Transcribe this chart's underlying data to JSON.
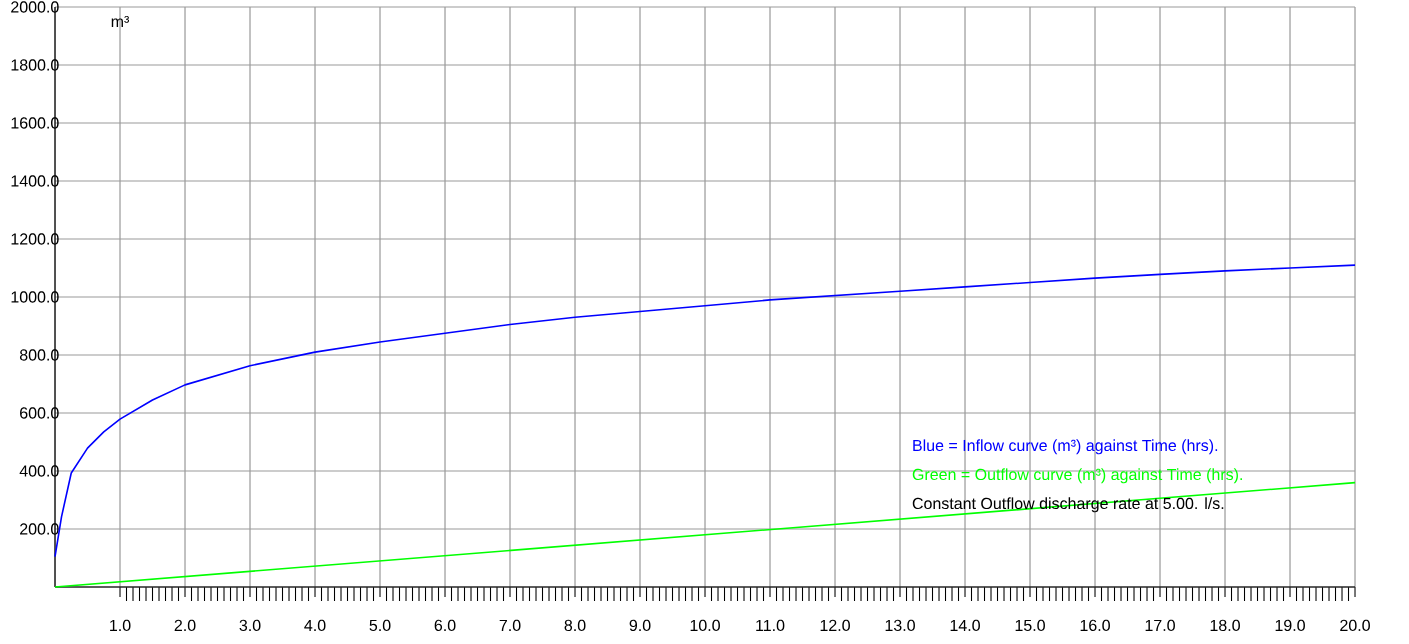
{
  "chart_data": {
    "type": "line",
    "ylabel": "m³",
    "x": [
      0,
      0.1,
      0.25,
      0.5,
      0.75,
      1,
      1.5,
      2,
      3,
      4,
      5,
      6,
      7,
      8,
      9,
      10,
      11,
      12,
      13,
      14,
      15,
      16,
      17,
      18,
      19,
      20
    ],
    "series": [
      {
        "name": "Blue = Inflow curve (m³) against Time (hrs).",
        "color": "#0000ff",
        "values": [
          105,
          242,
          393,
          479,
          535,
          579,
          645,
          697,
          763,
          810,
          845,
          875,
          905,
          930,
          950,
          970,
          990,
          1005,
          1020,
          1035,
          1050,
          1065,
          1078,
          1090,
          1100,
          1110
        ]
      },
      {
        "name": "Green = Outflow curve (m³) against Time (hrs).",
        "color": "#00ff00",
        "x": [
          0,
          10,
          20
        ],
        "values": [
          0,
          180,
          360
        ]
      }
    ],
    "annotations": [
      "Constant Outflow discharge rate at 5.00. l/s."
    ],
    "xlim": [
      0,
      20
    ],
    "ylim": [
      0,
      2000
    ],
    "xticks": [
      {
        "value": 1,
        "label": "1.0"
      },
      {
        "value": 2,
        "label": "2.0"
      },
      {
        "value": 3,
        "label": "3.0"
      },
      {
        "value": 4,
        "label": "4.0"
      },
      {
        "value": 5,
        "label": "5.0"
      },
      {
        "value": 6,
        "label": "6.0"
      },
      {
        "value": 7,
        "label": "7.0"
      },
      {
        "value": 8,
        "label": "8.0"
      },
      {
        "value": 9,
        "label": "9.0"
      },
      {
        "value": 10,
        "label": "10.0"
      },
      {
        "value": 11,
        "label": "11.0"
      },
      {
        "value": 12,
        "label": "12.0"
      },
      {
        "value": 13,
        "label": "13.0"
      },
      {
        "value": 14,
        "label": "14.0"
      },
      {
        "value": 15,
        "label": "15.0"
      },
      {
        "value": 16,
        "label": "16.0"
      },
      {
        "value": 17,
        "label": "17.0"
      },
      {
        "value": 18,
        "label": "18.0"
      },
      {
        "value": 19,
        "label": "19.0"
      },
      {
        "value": 20,
        "label": "20.0"
      }
    ],
    "yticks": [
      {
        "value": 200,
        "label": "200.0"
      },
      {
        "value": 400,
        "label": "400.0"
      },
      {
        "value": 600,
        "label": "600.0"
      },
      {
        "value": 800,
        "label": "800.0"
      },
      {
        "value": 1000,
        "label": "1000.0"
      },
      {
        "value": 1200,
        "label": "1200.0"
      },
      {
        "value": 1400,
        "label": "1400.0"
      },
      {
        "value": 1600,
        "label": "1600.0"
      },
      {
        "value": 1800,
        "label": "1800.0"
      },
      {
        "value": 2000,
        "label": "2000.0"
      }
    ],
    "grid": true,
    "legend": "bottom right",
    "marker": "none",
    "line_style": "solid"
  }
}
